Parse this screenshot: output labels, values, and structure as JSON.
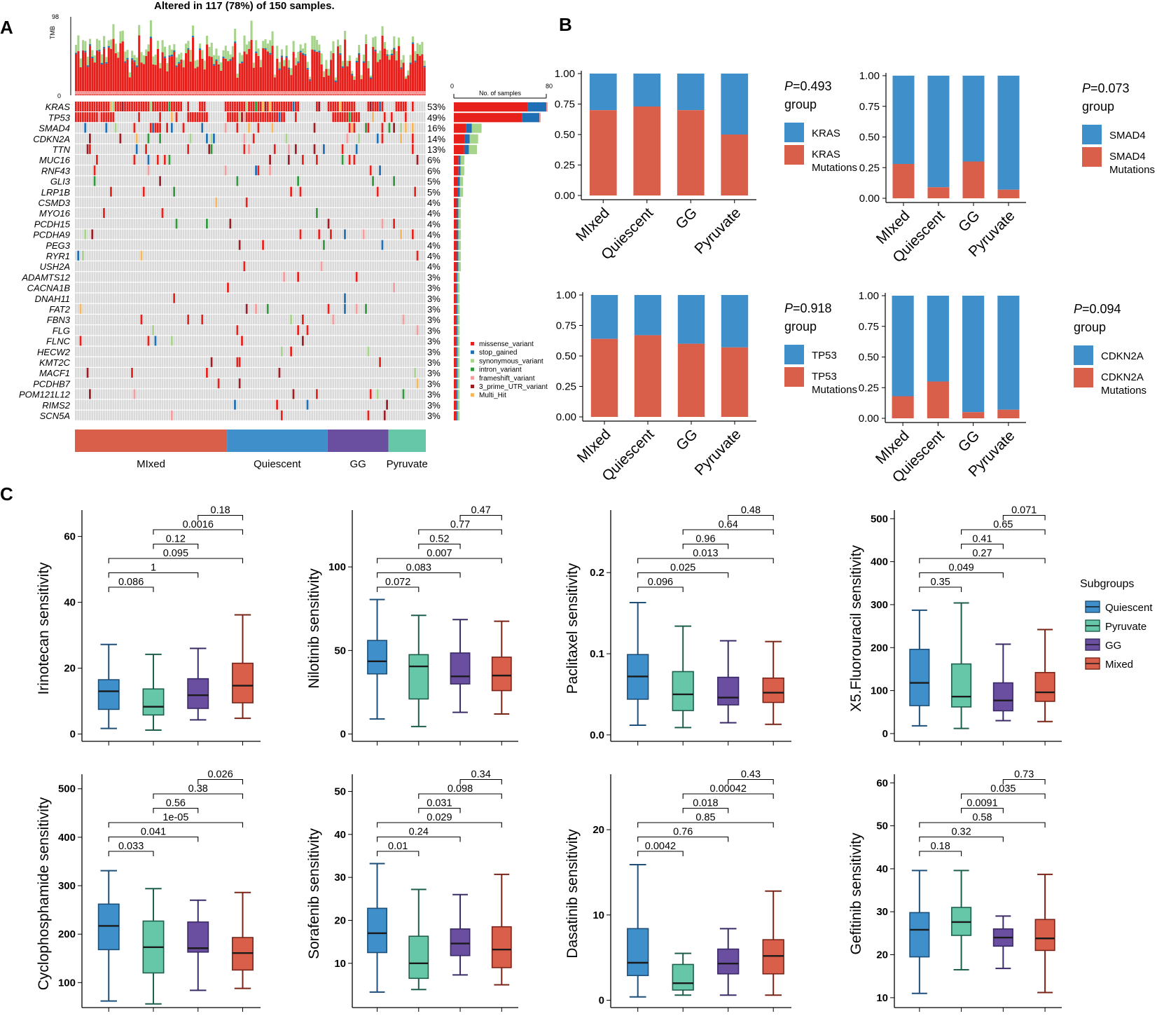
{
  "panels": {
    "a": "A",
    "b": "B",
    "c": "C"
  },
  "colors": {
    "mixed": "#d95f4b",
    "quiescent": "#3f8fca",
    "gg": "#6a4ea0",
    "pyruvate": "#66c7a8",
    "missense_variant": "#e8201c",
    "stop_gained": "#1f6fb5",
    "synonymous_variant": "#a5d48a",
    "intron_variant": "#2e9a3c",
    "frameshift_variant": "#f49b9b",
    "3_prime_UTR_variant": "#9b1c22",
    "Multi_Hit": "#f7b65a",
    "grid_cell": "#d9d9d9"
  },
  "oncoplot": {
    "title": "Altered in 117 (78%) of 150 samples.",
    "tmb_label": "TMB",
    "tmb_max": "98",
    "tmb_min": "0",
    "n_samples": 150,
    "genes": [
      {
        "name": "KRAS",
        "pct": "53%",
        "count": 80
      },
      {
        "name": "TP53",
        "pct": "49%",
        "count": 74
      },
      {
        "name": "SMAD4",
        "pct": "16%",
        "count": 24
      },
      {
        "name": "CDKN2A",
        "pct": "14%",
        "count": 21
      },
      {
        "name": "TTN",
        "pct": "13%",
        "count": 20
      },
      {
        "name": "MUC16",
        "pct": "6%",
        "count": 9
      },
      {
        "name": "RNF43",
        "pct": "6%",
        "count": 9
      },
      {
        "name": "GLI3",
        "pct": "5%",
        "count": 8
      },
      {
        "name": "LRP1B",
        "pct": "5%",
        "count": 8
      },
      {
        "name": "CSMD3",
        "pct": "4%",
        "count": 6
      },
      {
        "name": "MYO16",
        "pct": "4%",
        "count": 6
      },
      {
        "name": "PCDH15",
        "pct": "4%",
        "count": 6
      },
      {
        "name": "PCDHA9",
        "pct": "4%",
        "count": 6
      },
      {
        "name": "PEG3",
        "pct": "4%",
        "count": 6
      },
      {
        "name": "RYR1",
        "pct": "4%",
        "count": 6
      },
      {
        "name": "USH2A",
        "pct": "4%",
        "count": 6
      },
      {
        "name": "ADAMTS12",
        "pct": "3%",
        "count": 5
      },
      {
        "name": "CACNA1B",
        "pct": "3%",
        "count": 5
      },
      {
        "name": "DNAH11",
        "pct": "3%",
        "count": 5
      },
      {
        "name": "FAT2",
        "pct": "3%",
        "count": 5
      },
      {
        "name": "FBN3",
        "pct": "3%",
        "count": 5
      },
      {
        "name": "FLG",
        "pct": "3%",
        "count": 5
      },
      {
        "name": "FLNC",
        "pct": "3%",
        "count": 5
      },
      {
        "name": "HECW2",
        "pct": "3%",
        "count": 5
      },
      {
        "name": "KMT2C",
        "pct": "3%",
        "count": 5
      },
      {
        "name": "MACF1",
        "pct": "3%",
        "count": 5
      },
      {
        "name": "PCDHB7",
        "pct": "3%",
        "count": 5
      },
      {
        "name": "POM121L12",
        "pct": "3%",
        "count": 5
      },
      {
        "name": "RIMS2",
        "pct": "3%",
        "count": 5
      },
      {
        "name": "SCN5A",
        "pct": "3%",
        "count": 5
      }
    ],
    "samples_axis": {
      "min": "0",
      "max": "80",
      "label": "No. of samples"
    },
    "legend": [
      "missense_variant",
      "stop_gained",
      "synonymous_variant",
      "intron_variant",
      "frameshift_variant",
      "3_prime_UTR_variant",
      "Multi_Hit"
    ],
    "groups": [
      {
        "name": "MIxed",
        "n": 65,
        "key": "mixed"
      },
      {
        "name": "Quiescent",
        "n": 43,
        "key": "quiescent"
      },
      {
        "name": "GG",
        "n": 26,
        "key": "gg"
      },
      {
        "name": "Pyruvate",
        "n": 16,
        "key": "pyruvate"
      }
    ]
  },
  "chart_data": [
    {
      "type": "bar",
      "stacked": true,
      "panel": "B",
      "categories": [
        "MIxed",
        "Quiescent",
        "GG",
        "Pyruvate"
      ],
      "series": [
        {
          "name": "KRAS Mutations",
          "values": [
            0.7,
            0.73,
            0.7,
            0.5
          ]
        },
        {
          "name": "KRAS",
          "values": [
            0.3,
            0.27,
            0.3,
            0.5
          ]
        }
      ],
      "yticks": [
        "0.00",
        "0.25",
        "0.50",
        "0.75",
        "1.00"
      ],
      "p_label": "P",
      "p_value": "=0.493",
      "legend_title": "group",
      "legend": [
        "KRAS",
        "KRAS",
        "Mutations"
      ]
    },
    {
      "type": "bar",
      "stacked": true,
      "panel": "B",
      "categories": [
        "MIxed",
        "Quiescent",
        "GG",
        "Pyruvate"
      ],
      "series": [
        {
          "name": "SMAD4 Mutations",
          "values": [
            0.28,
            0.09,
            0.3,
            0.07
          ]
        },
        {
          "name": "SMAD4",
          "values": [
            0.72,
            0.91,
            0.7,
            0.93
          ]
        }
      ],
      "yticks": [
        "0.00",
        "0.25",
        "0.50",
        "0.75",
        "1.00"
      ],
      "p_label": "P",
      "p_value": "=0.073",
      "legend_title": "group",
      "legend": [
        "SMAD4",
        "SMAD4",
        "Mutations"
      ]
    },
    {
      "type": "bar",
      "stacked": true,
      "panel": "B",
      "categories": [
        "MIxed",
        "Quiescent",
        "GG",
        "Pyruvate"
      ],
      "series": [
        {
          "name": "TP53 Mutations",
          "values": [
            0.64,
            0.67,
            0.6,
            0.57
          ]
        },
        {
          "name": "TP53",
          "values": [
            0.36,
            0.33,
            0.4,
            0.43
          ]
        }
      ],
      "yticks": [
        "0.00",
        "0.25",
        "0.50",
        "0.75",
        "1.00"
      ],
      "p_label": "P",
      "p_value": "=0.918",
      "legend_title": "group",
      "legend": [
        "TP53",
        "TP53",
        "Mutations"
      ]
    },
    {
      "type": "bar",
      "stacked": true,
      "panel": "B",
      "categories": [
        "MIxed",
        "Quiescent",
        "GG",
        "Pyruvate"
      ],
      "series": [
        {
          "name": "CDKN2A Mutations",
          "values": [
            0.18,
            0.3,
            0.05,
            0.07
          ]
        },
        {
          "name": "CDKN2A",
          "values": [
            0.82,
            0.7,
            0.95,
            0.93
          ]
        }
      ],
      "yticks": [
        "0.00",
        "0.25",
        "0.50",
        "0.75",
        "1.00"
      ],
      "p_label": "P",
      "p_value": "=0.094",
      "legend_title": "group",
      "legend": [
        "CDKN2A",
        "CDKN2A",
        "Mutations"
      ]
    },
    {
      "type": "box",
      "panel": "C",
      "ylabel": "Irinotecan sensitivity",
      "groups": [
        "Quiescent",
        "Pyruvate",
        "GG",
        "Mixed"
      ],
      "boxes": [
        [
          1.7,
          7.5,
          13.0,
          16.5,
          27.2
        ],
        [
          1.2,
          5.8,
          8.3,
          13.7,
          24.2
        ],
        [
          4.3,
          7.8,
          11.8,
          16.8,
          26.0
        ],
        [
          4.8,
          9.5,
          14.7,
          21.5,
          36.2
        ]
      ],
      "ylim": [
        -0.5,
        68
      ],
      "yticks": [
        "0",
        "20",
        "40",
        "60"
      ],
      "pvalues": [
        "0.086",
        "1",
        "0.095",
        "0.12",
        "0.0016",
        "0.18"
      ]
    },
    {
      "type": "box",
      "panel": "C",
      "ylabel": "Nilotinib sensitivity",
      "groups": [
        "Quiescent",
        "Pyruvate",
        "GG",
        "Mixed"
      ],
      "boxes": [
        [
          9.0,
          36.0,
          43.5,
          56.0,
          80.5
        ],
        [
          4.5,
          21.0,
          40.5,
          47.5,
          71.0
        ],
        [
          13.0,
          30.0,
          34.5,
          48.5,
          68.5
        ],
        [
          12.0,
          26.0,
          35.0,
          46.0,
          67.5
        ]
      ],
      "ylim": [
        -1,
        134
      ],
      "yticks": [
        "0",
        "50",
        "100"
      ],
      "pvalues": [
        "0.072",
        "0.083",
        "0.007",
        "0.52",
        "0.77",
        "0.47"
      ]
    },
    {
      "type": "box",
      "panel": "C",
      "ylabel": "Paclitaxel sensitivity",
      "groups": [
        "Quiescent",
        "Pyruvate",
        "GG",
        "Mixed"
      ],
      "boxes": [
        [
          0.012,
          0.044,
          0.072,
          0.099,
          0.163
        ],
        [
          0.009,
          0.03,
          0.05,
          0.078,
          0.134
        ],
        [
          0.015,
          0.037,
          0.046,
          0.071,
          0.116
        ],
        [
          0.013,
          0.04,
          0.052,
          0.07,
          0.115
        ]
      ],
      "ylim": [
        -0.001,
        0.277
      ],
      "yticks": [
        "0.0",
        "0.1",
        "0.2"
      ],
      "pvalues": [
        "0.096",
        "0.025",
        "0.013",
        "0.96",
        "0.64",
        "0.48"
      ]
    },
    {
      "type": "box",
      "panel": "C",
      "ylabel": "X5.Fluorouracil sensitivity",
      "groups": [
        "Quiescent",
        "Pyruvate",
        "GG",
        "Mixed"
      ],
      "boxes": [
        [
          18,
          65,
          118,
          196,
          287
        ],
        [
          12,
          62,
          86,
          162,
          304
        ],
        [
          30,
          53,
          77,
          118,
          208
        ],
        [
          28,
          75,
          96,
          142,
          242
        ]
      ],
      "ylim": [
        -5,
        520
      ],
      "yticks": [
        "0",
        "100",
        "200",
        "300",
        "400",
        "500"
      ],
      "pvalues": [
        "0.35",
        "0.049",
        "0.27",
        "0.41",
        "0.65",
        "0.071"
      ],
      "legend_title": "Subgroups",
      "legend": [
        "Quiescent",
        "Pyruvate",
        "GG",
        "Mixed"
      ]
    },
    {
      "type": "box",
      "panel": "C",
      "ylabel": "Cyclophosphamide sensitivity",
      "groups": [
        "Quiescent",
        "Pyruvate",
        "GG",
        "Mixed"
      ],
      "boxes": [
        [
          62,
          168,
          217,
          262,
          331
        ],
        [
          56,
          120,
          173,
          227,
          294
        ],
        [
          84,
          163,
          171,
          225,
          270
        ],
        [
          88,
          126,
          161,
          193,
          286
        ]
      ],
      "ylim": [
        60,
        530
      ],
      "yticks": [
        "100",
        "200",
        "300",
        "400",
        "500"
      ],
      "pvalues": [
        "0.033",
        "0.041",
        "1e-05",
        "0.56",
        "0.38",
        "0.026"
      ]
    },
    {
      "type": "box",
      "panel": "C",
      "ylabel": "Sorafenib sensitivity",
      "groups": [
        "Quiescent",
        "Pyruvate",
        "GG",
        "Mixed"
      ],
      "boxes": [
        [
          3.3,
          12.5,
          17.0,
          22.8,
          33.2
        ],
        [
          3.9,
          6.5,
          10.0,
          16.3,
          27.2
        ],
        [
          7.3,
          11.8,
          14.6,
          18.0,
          26.0
        ],
        [
          5.0,
          9.0,
          13.2,
          18.5,
          30.7
        ]
      ],
      "ylim": [
        1,
        54
      ],
      "yticks": [
        "10",
        "20",
        "30",
        "40",
        "50"
      ],
      "pvalues": [
        "0.01",
        "0.24",
        "0.029",
        "0.031",
        "0.098",
        "0.34"
      ]
    },
    {
      "type": "box",
      "panel": "C",
      "ylabel": "Dasatinib sensitivity",
      "groups": [
        "Quiescent",
        "Pyruvate",
        "GG",
        "Mixed"
      ],
      "boxes": [
        [
          0.4,
          2.9,
          4.4,
          8.4,
          15.9
        ],
        [
          0.6,
          1.2,
          2.0,
          4.2,
          5.5
        ],
        [
          0.6,
          3.1,
          4.3,
          6.0,
          8.4
        ],
        [
          0.6,
          3.1,
          5.2,
          7.1,
          12.8
        ]
      ],
      "ylim": [
        -0.2,
        26.5
      ],
      "yticks": [
        "0",
        "10",
        "20"
      ],
      "pvalues": [
        "0.0042",
        "0.76",
        "0.85",
        "0.018",
        "0.00042",
        "0.43"
      ]
    },
    {
      "type": "box",
      "panel": "C",
      "ylabel": "Gefitinib sensitivity",
      "groups": [
        "Quiescent",
        "Pyruvate",
        "GG",
        "Mixed"
      ],
      "boxes": [
        [
          11.0,
          19.5,
          25.8,
          29.8,
          39.6
        ],
        [
          16.5,
          24.5,
          27.6,
          31.0,
          39.6
        ],
        [
          16.8,
          22.0,
          24.0,
          26.0,
          29.0
        ],
        [
          11.2,
          21.0,
          23.8,
          28.2,
          38.7
        ]
      ],
      "ylim": [
        9,
        62
      ],
      "yticks": [
        "10",
        "20",
        "30",
        "40",
        "50",
        "60"
      ],
      "pvalues": [
        "0.18",
        "0.32",
        "0.58",
        "0.0091",
        "0.035",
        "0.73"
      ]
    }
  ]
}
